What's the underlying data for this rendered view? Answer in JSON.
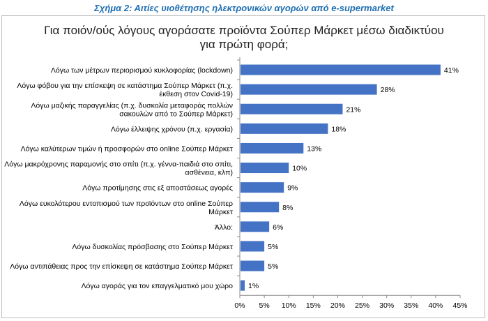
{
  "caption": "Σχήμα 2: Αιτίες υιοθέτησης ηλεκτρονικών αγορών από e-supermarket",
  "chart_data": {
    "type": "bar",
    "orientation": "horizontal",
    "title_lines": [
      "Για ποιόν/ούς λόγους αγοράσατε προϊόντα Σούπερ Μάρκετ μέσω διαδικτύου",
      "για πρώτη φορά;"
    ],
    "categories": [
      [
        "Λόγω των μέτρων περιορισμού κυκλοφορίας (lockdown)"
      ],
      [
        "Λόγω φόβου για την επίσκεψη σε κατάστημα Σούπερ Μάρκετ (π.χ.",
        "έκθεση στον Covid-19)"
      ],
      [
        "Λόγω μαζικής παραγγελίας (π.χ. δυσκολία μεταφοράς πολλών",
        "σακουλών από το Σούπερ Μάρκετ)"
      ],
      [
        "Λόγω έλλειψης χρόνου (π.χ. εργασία)"
      ],
      [
        "Λόγω καλύτερων τιμών ή προσφορών στο online Σούπερ Μάρκετ"
      ],
      [
        "Λόγω μακρόχρονης παραμονής στο σπίτι (π.χ. γέννα-παιδιά στο σπίτι,",
        "ασθένεια, κλπ)"
      ],
      [
        "Λόγω προτίμησης στις εξ αποστάσεως αγορές"
      ],
      [
        "Λόγω ευκολότερου εντοπισμού των προϊόντων στο online Σούπερ",
        "Μάρκετ"
      ],
      [
        "Άλλο:"
      ],
      [
        "Λόγω δυσκολίας πρόσβασης στο Σούπερ Μάρκετ"
      ],
      [
        "Λόγω αντιπάθειας προς την επίσκεψη σε κατάστημα Σούπερ Μάρκετ"
      ],
      [
        "Λόγω αγοράς για τον επαγγελματικό μου χώρο"
      ]
    ],
    "values": [
      41,
      28,
      21,
      18,
      13,
      10,
      9,
      8,
      6,
      5,
      5,
      1
    ],
    "value_labels": [
      "41%",
      "28%",
      "21%",
      "18%",
      "13%",
      "10%",
      "9%",
      "8%",
      "6%",
      "5%",
      "5%",
      "1%"
    ],
    "xlim": [
      0,
      45
    ],
    "xticks": [
      0,
      5,
      10,
      15,
      20,
      25,
      30,
      35,
      40,
      45
    ],
    "xtick_labels": [
      "0%",
      "5%",
      "10%",
      "15%",
      "20%",
      "25%",
      "30%",
      "35%",
      "40%",
      "45%"
    ],
    "bar_color": "#4472c4",
    "grid": false,
    "legend": "none"
  }
}
